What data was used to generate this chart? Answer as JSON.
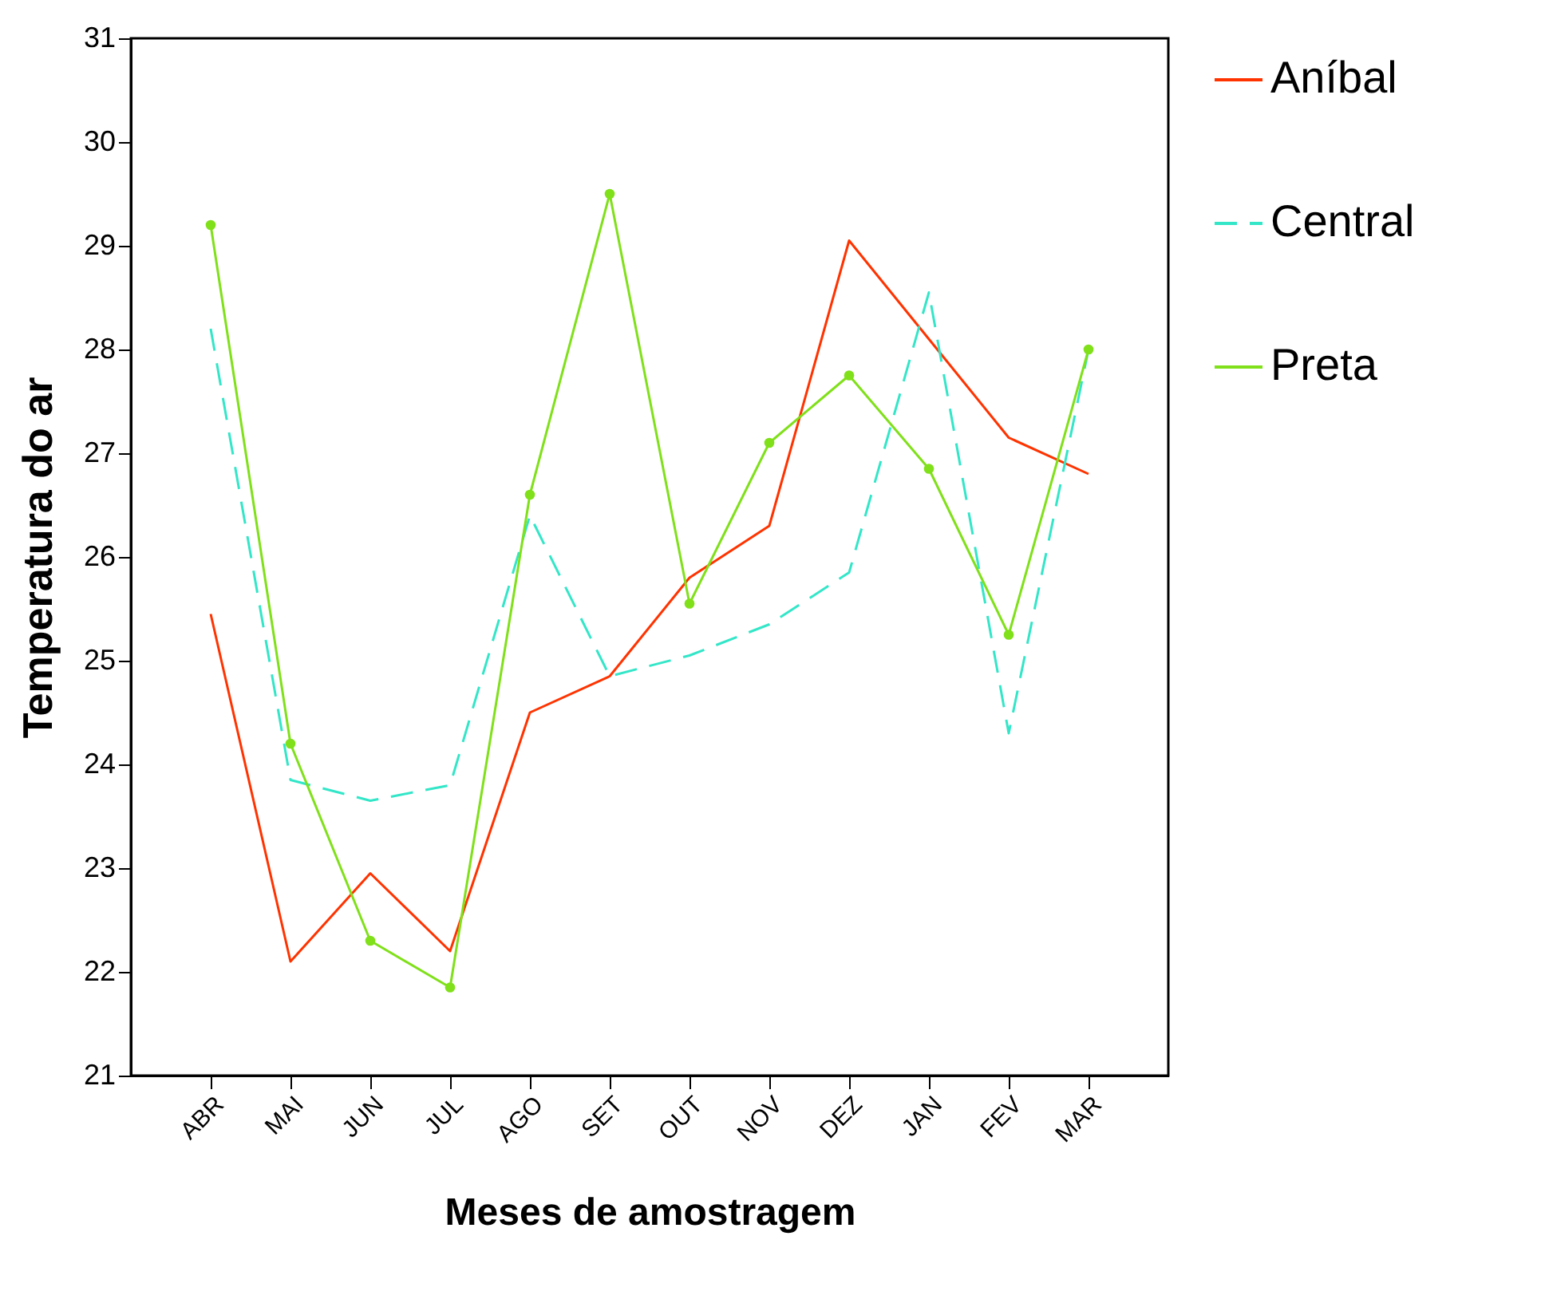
{
  "chart_data": {
    "type": "line",
    "xlabel": "Meses de amostragem",
    "ylabel": "Temperatura do ar",
    "categories": [
      "ABR",
      "MAI",
      "JUN",
      "JUL",
      "AGO",
      "SET",
      "OUT",
      "NOV",
      "DEZ",
      "JAN",
      "FEV",
      "MAR"
    ],
    "series": [
      {
        "name": "Aníbal",
        "color": "#ff3300",
        "line_style": "solid",
        "marker": "none",
        "values": [
          25.45,
          22.1,
          22.95,
          22.2,
          24.5,
          24.85,
          25.8,
          26.3,
          29.05,
          28.1,
          27.15,
          26.8
        ]
      },
      {
        "name": "Central",
        "color": "#33e6c8",
        "line_style": "dashed",
        "marker": "none",
        "values": [
          28.2,
          23.85,
          23.65,
          23.8,
          26.4,
          24.85,
          25.05,
          25.35,
          25.85,
          28.55,
          24.3,
          28.0
        ]
      },
      {
        "name": "Preta",
        "color": "#80e01a",
        "line_style": "solid",
        "marker": "circle",
        "values": [
          29.2,
          24.2,
          22.3,
          21.85,
          26.6,
          29.5,
          25.55,
          27.1,
          27.75,
          26.85,
          25.25,
          28.0
        ]
      }
    ],
    "ylim": [
      21,
      31
    ],
    "yticks": [
      21,
      22,
      23,
      24,
      25,
      26,
      27,
      28,
      29,
      30,
      31
    ],
    "grid": false,
    "legend": "right"
  }
}
